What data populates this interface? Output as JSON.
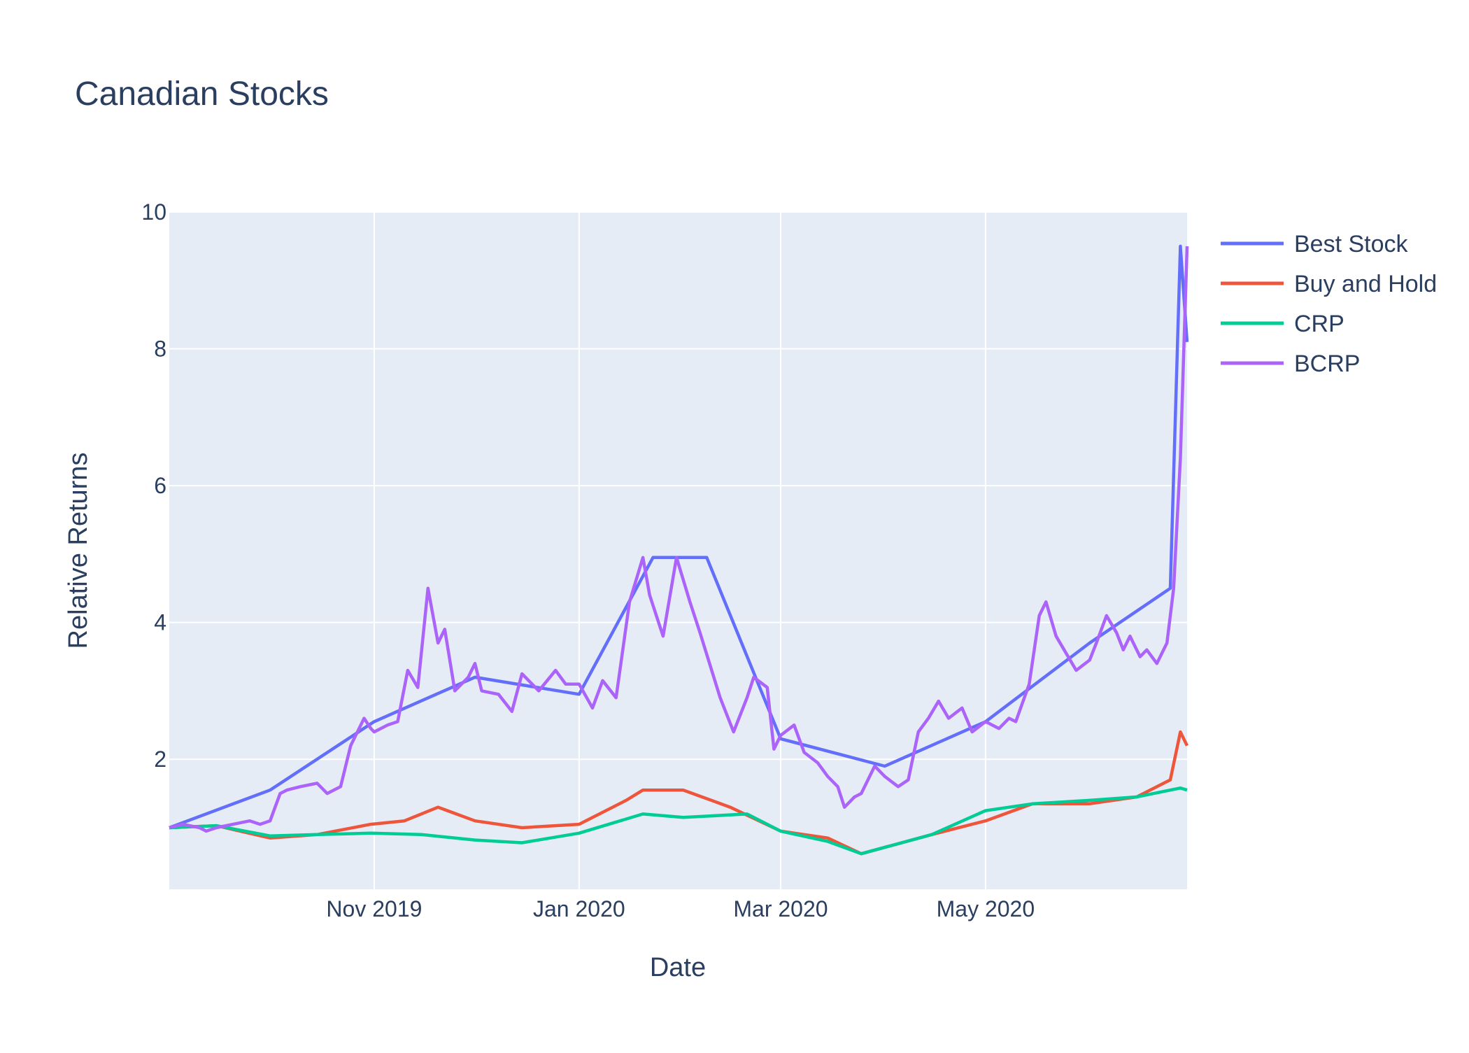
{
  "chart_data": {
    "type": "line",
    "title": "Canadian Stocks",
    "xlabel": "Date",
    "ylabel": "Relative Returns",
    "x_range": [
      "2019-09-01",
      "2020-06-30"
    ],
    "x_ticks": [
      {
        "date": "2019-11-01",
        "label": "Nov 2019"
      },
      {
        "date": "2020-01-01",
        "label": "Jan 2020"
      },
      {
        "date": "2020-03-01",
        "label": "Mar 2020"
      },
      {
        "date": "2020-05-01",
        "label": "May 2020"
      }
    ],
    "ylim": [
      0.1,
      10
    ],
    "y_ticks": [
      2,
      4,
      6,
      8,
      10
    ],
    "grid": true,
    "legend_position": "top-right",
    "colors": {
      "plot_bg": "#e5ecf6",
      "grid": "#ffffff",
      "text": "#2a3f5f"
    },
    "series": [
      {
        "name": "Best Stock",
        "color": "#636efa",
        "x": [
          "2019-09-01",
          "2019-10-01",
          "2019-11-01",
          "2019-12-01",
          "2020-01-01",
          "2020-01-23",
          "2020-02-08",
          "2020-03-01",
          "2020-04-01",
          "2020-05-01",
          "2020-06-01",
          "2020-06-25",
          "2020-06-28",
          "2020-06-30"
        ],
        "y": [
          1.0,
          1.55,
          2.55,
          3.2,
          2.95,
          4.95,
          4.95,
          2.3,
          1.9,
          2.55,
          3.7,
          4.5,
          9.5,
          8.1
        ]
      },
      {
        "name": "Buy and Hold",
        "color": "#ef553b",
        "x": [
          "2019-09-01",
          "2019-09-15",
          "2019-10-01",
          "2019-10-15",
          "2019-10-31",
          "2019-11-10",
          "2019-11-20",
          "2019-12-01",
          "2019-12-15",
          "2020-01-01",
          "2020-01-15",
          "2020-01-20",
          "2020-02-01",
          "2020-02-15",
          "2020-03-01",
          "2020-03-15",
          "2020-03-25",
          "2020-04-15",
          "2020-05-01",
          "2020-05-15",
          "2020-06-01",
          "2020-06-15",
          "2020-06-25",
          "2020-06-28",
          "2020-06-30"
        ],
        "y": [
          1.0,
          1.03,
          0.85,
          0.9,
          1.05,
          1.1,
          1.3,
          1.1,
          1.0,
          1.05,
          1.4,
          1.55,
          1.55,
          1.3,
          0.95,
          0.85,
          0.62,
          0.9,
          1.1,
          1.35,
          1.35,
          1.45,
          1.7,
          2.4,
          2.2
        ]
      },
      {
        "name": "CRP",
        "color": "#00cc96",
        "x": [
          "2019-09-01",
          "2019-09-15",
          "2019-10-01",
          "2019-10-15",
          "2019-10-31",
          "2019-11-15",
          "2019-12-01",
          "2019-12-15",
          "2020-01-01",
          "2020-01-20",
          "2020-02-01",
          "2020-02-20",
          "2020-03-01",
          "2020-03-15",
          "2020-03-25",
          "2020-04-15",
          "2020-05-01",
          "2020-05-15",
          "2020-06-01",
          "2020-06-15",
          "2020-06-28",
          "2020-06-30"
        ],
        "y": [
          1.0,
          1.03,
          0.88,
          0.9,
          0.92,
          0.9,
          0.82,
          0.78,
          0.92,
          1.2,
          1.15,
          1.2,
          0.95,
          0.8,
          0.62,
          0.9,
          1.25,
          1.35,
          1.4,
          1.45,
          1.58,
          1.55
        ]
      },
      {
        "name": "BCRP",
        "color": "#ab63fa",
        "x": [
          "2019-09-01",
          "2019-09-05",
          "2019-09-10",
          "2019-09-12",
          "2019-09-15",
          "2019-09-20",
          "2019-09-25",
          "2019-09-28",
          "2019-10-01",
          "2019-10-04",
          "2019-10-06",
          "2019-10-10",
          "2019-10-15",
          "2019-10-18",
          "2019-10-22",
          "2019-10-25",
          "2019-10-29",
          "2019-10-31",
          "2019-11-01",
          "2019-11-05",
          "2019-11-08",
          "2019-11-11",
          "2019-11-14",
          "2019-11-17",
          "2019-11-20",
          "2019-11-22",
          "2019-11-23",
          "2019-11-25",
          "2019-11-29",
          "2019-12-01",
          "2019-12-03",
          "2019-12-08",
          "2019-12-12",
          "2019-12-15",
          "2019-12-20",
          "2019-12-25",
          "2019-12-28",
          "2020-01-01",
          "2020-01-05",
          "2020-01-08",
          "2020-01-12",
          "2020-01-16",
          "2020-01-20",
          "2020-01-22",
          "2020-01-26",
          "2020-01-30",
          "2020-02-03",
          "2020-02-06",
          "2020-02-12",
          "2020-02-16",
          "2020-02-20",
          "2020-02-22",
          "2020-02-26",
          "2020-02-28",
          "2020-03-01",
          "2020-03-05",
          "2020-03-08",
          "2020-03-12",
          "2020-03-15",
          "2020-03-18",
          "2020-03-20",
          "2020-03-23",
          "2020-03-25",
          "2020-03-29",
          "2020-04-01",
          "2020-04-05",
          "2020-04-08",
          "2020-04-11",
          "2020-04-14",
          "2020-04-17",
          "2020-04-20",
          "2020-04-24",
          "2020-04-27",
          "2020-05-01",
          "2020-05-05",
          "2020-05-08",
          "2020-05-10",
          "2020-05-14",
          "2020-05-17",
          "2020-05-19",
          "2020-05-22",
          "2020-05-25",
          "2020-05-28",
          "2020-06-01",
          "2020-06-03",
          "2020-06-06",
          "2020-06-09",
          "2020-06-11",
          "2020-06-13",
          "2020-06-16",
          "2020-06-18",
          "2020-06-21",
          "2020-06-24",
          "2020-06-26",
          "2020-06-28",
          "2020-06-30"
        ],
        "y": [
          1.0,
          1.05,
          1.0,
          0.95,
          1.0,
          1.05,
          1.1,
          1.05,
          1.1,
          1.5,
          1.55,
          1.6,
          1.65,
          1.5,
          1.6,
          2.2,
          2.6,
          2.45,
          2.4,
          2.5,
          2.55,
          3.3,
          3.05,
          4.5,
          3.7,
          3.9,
          3.6,
          3.0,
          3.2,
          3.4,
          3.0,
          2.95,
          2.7,
          3.25,
          3.0,
          3.3,
          3.1,
          3.1,
          2.75,
          3.15,
          2.9,
          4.3,
          4.95,
          4.4,
          3.8,
          4.95,
          4.3,
          3.85,
          2.9,
          2.4,
          2.9,
          3.2,
          3.05,
          2.15,
          2.35,
          2.5,
          2.1,
          1.95,
          1.75,
          1.6,
          1.3,
          1.45,
          1.5,
          1.9,
          1.75,
          1.6,
          1.7,
          2.4,
          2.6,
          2.85,
          2.6,
          2.75,
          2.4,
          2.55,
          2.45,
          2.6,
          2.55,
          3.1,
          4.1,
          4.3,
          3.8,
          3.55,
          3.3,
          3.45,
          3.7,
          4.1,
          3.85,
          3.6,
          3.8,
          3.5,
          3.6,
          3.4,
          3.7,
          4.5,
          6.4,
          9.5
        ]
      }
    ]
  }
}
